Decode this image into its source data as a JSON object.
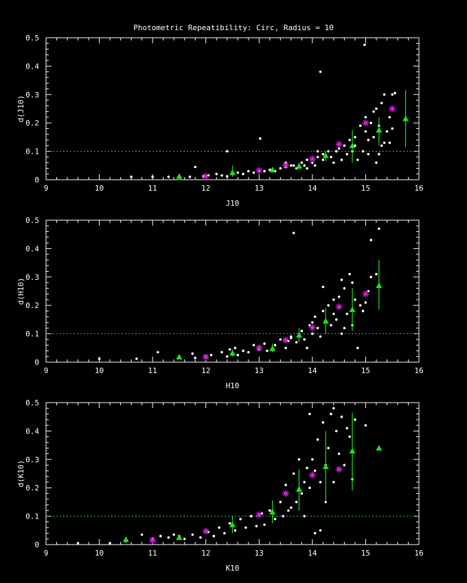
{
  "page_title": "Photometric Repeatibility: Circ, Radius = 10",
  "colors": {
    "background": "#000000",
    "axes": "#ffffff",
    "points": "#ffffff",
    "median": "#19e619",
    "mean": "#e020e0",
    "reference": "#3fb0c8"
  },
  "chart_data": [
    {
      "type": "scatter",
      "xlabel": "J10",
      "ylabel": "d(J10)",
      "xlim": [
        9,
        16
      ],
      "ylim": [
        0,
        0.5
      ],
      "xticks": [
        "9",
        "10",
        "11",
        "12",
        "13",
        "14",
        "15",
        "16"
      ],
      "yticks": [
        "0",
        "0.1",
        "0.2",
        "0.3",
        "0.4",
        "0.5"
      ],
      "reference_y": 0.1,
      "points": [
        [
          10.6,
          0.01
        ],
        [
          11.0,
          0.01
        ],
        [
          11.3,
          0.01
        ],
        [
          11.5,
          0.01
        ],
        [
          11.7,
          0.01
        ],
        [
          11.8,
          0.045
        ],
        [
          11.95,
          0.012
        ],
        [
          12.05,
          0.015
        ],
        [
          12.2,
          0.02
        ],
        [
          12.3,
          0.015
        ],
        [
          12.4,
          0.012
        ],
        [
          12.4,
          0.1
        ],
        [
          12.5,
          0.02
        ],
        [
          12.6,
          0.025
        ],
        [
          12.7,
          0.02
        ],
        [
          12.8,
          0.03
        ],
        [
          12.9,
          0.025
        ],
        [
          13.0,
          0.03
        ],
        [
          13.02,
          0.145
        ],
        [
          13.1,
          0.03
        ],
        [
          13.2,
          0.035
        ],
        [
          13.3,
          0.03
        ],
        [
          13.4,
          0.04
        ],
        [
          13.5,
          0.045
        ],
        [
          13.5,
          0.06
        ],
        [
          13.6,
          0.05
        ],
        [
          13.65,
          0.05
        ],
        [
          13.7,
          0.04
        ],
        [
          13.8,
          0.06
        ],
        [
          13.85,
          0.05
        ],
        [
          13.9,
          0.07
        ],
        [
          13.9,
          0.04
        ],
        [
          14.0,
          0.06
        ],
        [
          14.05,
          0.05
        ],
        [
          14.1,
          0.08
        ],
        [
          14.1,
          0.1
        ],
        [
          14.15,
          0.38
        ],
        [
          14.2,
          0.07
        ],
        [
          14.2,
          0.09
        ],
        [
          14.3,
          0.1
        ],
        [
          14.35,
          0.08
        ],
        [
          14.4,
          0.06
        ],
        [
          14.45,
          0.1
        ],
        [
          14.5,
          0.11
        ],
        [
          14.55,
          0.07
        ],
        [
          14.6,
          0.12
        ],
        [
          14.65,
          0.09
        ],
        [
          14.7,
          0.14
        ],
        [
          14.75,
          0.1
        ],
        [
          14.8,
          0.15
        ],
        [
          14.85,
          0.07
        ],
        [
          14.9,
          0.19
        ],
        [
          14.95,
          0.1
        ],
        [
          14.98,
          0.475
        ],
        [
          15.0,
          0.17
        ],
        [
          15.0,
          0.22
        ],
        [
          15.05,
          0.09
        ],
        [
          15.1,
          0.2
        ],
        [
          15.15,
          0.15
        ],
        [
          15.2,
          0.06
        ],
        [
          15.2,
          0.25
        ],
        [
          15.25,
          0.19
        ],
        [
          15.3,
          0.12
        ],
        [
          15.3,
          0.27
        ],
        [
          15.35,
          0.3
        ],
        [
          15.4,
          0.17
        ],
        [
          15.45,
          0.22
        ],
        [
          15.5,
          0.3
        ],
        [
          15.5,
          0.18
        ],
        [
          15.55,
          0.305
        ],
        [
          15.35,
          0.13
        ],
        [
          15.45,
          0.13
        ],
        [
          15.25,
          0.09
        ],
        [
          15.15,
          0.24
        ],
        [
          14.8,
          0.12
        ],
        [
          15.05,
          0.14
        ]
      ],
      "median": [
        {
          "x": 11.5,
          "y": 0.012,
          "lo": 0.005,
          "hi": 0.02
        },
        {
          "x": 12.5,
          "y": 0.025,
          "lo": 0.01,
          "hi": 0.05
        },
        {
          "x": 13.25,
          "y": 0.035,
          "lo": 0.025,
          "hi": 0.045
        },
        {
          "x": 13.75,
          "y": 0.048,
          "lo": 0.035,
          "hi": 0.06
        },
        {
          "x": 14.25,
          "y": 0.085,
          "lo": 0.065,
          "hi": 0.1
        },
        {
          "x": 14.75,
          "y": 0.12,
          "lo": 0.06,
          "hi": 0.175
        },
        {
          "x": 15.25,
          "y": 0.175,
          "lo": 0.12,
          "hi": 0.22
        },
        {
          "x": 15.75,
          "y": 0.215,
          "lo": 0.115,
          "hi": 0.315
        }
      ],
      "mean": [
        [
          12.0,
          0.012
        ],
        [
          13.0,
          0.033
        ],
        [
          13.5,
          0.05
        ],
        [
          14.0,
          0.073
        ],
        [
          14.5,
          0.125
        ],
        [
          15.0,
          0.2
        ],
        [
          15.5,
          0.25
        ]
      ]
    },
    {
      "type": "scatter",
      "xlabel": "H10",
      "ylabel": "d(H10)",
      "xlim": [
        9,
        16
      ],
      "ylim": [
        0,
        0.5
      ],
      "xticks": [
        "9",
        "10",
        "11",
        "12",
        "13",
        "14",
        "15",
        "16"
      ],
      "yticks": [
        "0",
        "0.1",
        "0.2",
        "0.3",
        "0.4",
        "0.5"
      ],
      "reference_y": 0.1,
      "points": [
        [
          10.0,
          0.012
        ],
        [
          10.7,
          0.012
        ],
        [
          11.1,
          0.035
        ],
        [
          11.5,
          0.02
        ],
        [
          11.75,
          0.03
        ],
        [
          11.8,
          0.015
        ],
        [
          12.0,
          0.02
        ],
        [
          12.1,
          0.025
        ],
        [
          12.3,
          0.035
        ],
        [
          12.4,
          0.02
        ],
        [
          12.45,
          0.045
        ],
        [
          12.55,
          0.05
        ],
        [
          12.6,
          0.025
        ],
        [
          12.7,
          0.04
        ],
        [
          12.8,
          0.035
        ],
        [
          12.9,
          0.06
        ],
        [
          13.0,
          0.045
        ],
        [
          13.1,
          0.065
        ],
        [
          13.15,
          0.04
        ],
        [
          13.3,
          0.06
        ],
        [
          13.4,
          0.08
        ],
        [
          13.5,
          0.05
        ],
        [
          13.55,
          0.075
        ],
        [
          13.6,
          0.09
        ],
        [
          13.65,
          0.455
        ],
        [
          13.7,
          0.07
        ],
        [
          13.8,
          0.11
        ],
        [
          13.85,
          0.08
        ],
        [
          13.9,
          0.05
        ],
        [
          13.95,
          0.13
        ],
        [
          14.0,
          0.1
        ],
        [
          14.05,
          0.16
        ],
        [
          14.1,
          0.12
        ],
        [
          14.15,
          0.09
        ],
        [
          14.2,
          0.18
        ],
        [
          14.25,
          0.14
        ],
        [
          14.3,
          0.2
        ],
        [
          14.35,
          0.13
        ],
        [
          14.4,
          0.22
        ],
        [
          14.45,
          0.15
        ],
        [
          14.5,
          0.23
        ],
        [
          14.55,
          0.1
        ],
        [
          14.6,
          0.26
        ],
        [
          14.65,
          0.17
        ],
        [
          14.7,
          0.31
        ],
        [
          14.75,
          0.13
        ],
        [
          14.8,
          0.22
        ],
        [
          14.85,
          0.05
        ],
        [
          14.9,
          0.2
        ],
        [
          14.95,
          0.18
        ],
        [
          15.0,
          0.21
        ],
        [
          15.05,
          0.25
        ],
        [
          15.1,
          0.3
        ],
        [
          15.1,
          0.43
        ],
        [
          15.2,
          0.31
        ],
        [
          15.25,
          0.47
        ],
        [
          14.4,
          0.17
        ],
        [
          14.6,
          0.12
        ],
        [
          14.2,
          0.265
        ],
        [
          14.55,
          0.29
        ],
        [
          14.75,
          0.28
        ],
        [
          13.6,
          0.085
        ],
        [
          14.0,
          0.14
        ]
      ],
      "median": [
        {
          "x": 11.5,
          "y": 0.018,
          "lo": 0.01,
          "hi": 0.025
        },
        {
          "x": 12.5,
          "y": 0.032,
          "lo": 0.02,
          "hi": 0.045
        },
        {
          "x": 13.25,
          "y": 0.048,
          "lo": 0.035,
          "hi": 0.065
        },
        {
          "x": 13.75,
          "y": 0.095,
          "lo": 0.07,
          "hi": 0.12
        },
        {
          "x": 14.25,
          "y": 0.145,
          "lo": 0.1,
          "hi": 0.19
        },
        {
          "x": 14.75,
          "y": 0.185,
          "lo": 0.11,
          "hi": 0.26
        },
        {
          "x": 15.25,
          "y": 0.27,
          "lo": 0.185,
          "hi": 0.36
        }
      ],
      "mean": [
        [
          12.0,
          0.018
        ],
        [
          13.0,
          0.05
        ],
        [
          13.5,
          0.078
        ],
        [
          14.0,
          0.122
        ],
        [
          14.5,
          0.195
        ],
        [
          15.0,
          0.24
        ]
      ]
    },
    {
      "type": "scatter",
      "xlabel": "K10",
      "ylabel": "d(K10)",
      "xlim": [
        9,
        16
      ],
      "ylim": [
        0,
        0.5
      ],
      "xticks": [
        "9",
        "10",
        "11",
        "12",
        "13",
        "14",
        "15",
        "16"
      ],
      "yticks": [
        "0",
        "0.1",
        "0.2",
        "0.3",
        "0.4",
        "0.5"
      ],
      "reference_y": 0.1,
      "points": [
        [
          9.6,
          0.005
        ],
        [
          10.2,
          0.005
        ],
        [
          10.5,
          0.012
        ],
        [
          10.8,
          0.035
        ],
        [
          11.0,
          0.02
        ],
        [
          11.15,
          0.03
        ],
        [
          11.3,
          0.025
        ],
        [
          11.4,
          0.035
        ],
        [
          11.5,
          0.03
        ],
        [
          11.6,
          0.02
        ],
        [
          11.75,
          0.035
        ],
        [
          11.9,
          0.025
        ],
        [
          12.05,
          0.045
        ],
        [
          12.15,
          0.03
        ],
        [
          12.25,
          0.06
        ],
        [
          12.35,
          0.04
        ],
        [
          12.45,
          0.075
        ],
        [
          12.55,
          0.05
        ],
        [
          12.65,
          0.09
        ],
        [
          12.75,
          0.06
        ],
        [
          12.85,
          0.1
        ],
        [
          12.95,
          0.065
        ],
        [
          13.05,
          0.11
        ],
        [
          13.1,
          0.07
        ],
        [
          13.2,
          0.12
        ],
        [
          13.3,
          0.09
        ],
        [
          13.4,
          0.15
        ],
        [
          13.45,
          0.1
        ],
        [
          13.5,
          0.21
        ],
        [
          13.55,
          0.12
        ],
        [
          13.6,
          0.13
        ],
        [
          13.65,
          0.25
        ],
        [
          13.7,
          0.15
        ],
        [
          13.75,
          0.3
        ],
        [
          13.8,
          0.18
        ],
        [
          13.85,
          0.22
        ],
        [
          13.9,
          0.27
        ],
        [
          13.95,
          0.2
        ],
        [
          14.0,
          0.3
        ],
        [
          14.05,
          0.04
        ],
        [
          14.05,
          0.26
        ],
        [
          14.1,
          0.37
        ],
        [
          14.15,
          0.22
        ],
        [
          14.2,
          0.43
        ],
        [
          14.25,
          0.28
        ],
        [
          14.3,
          0.34
        ],
        [
          14.35,
          0.46
        ],
        [
          14.4,
          0.22
        ],
        [
          14.45,
          0.4
        ],
        [
          14.5,
          0.32
        ],
        [
          14.55,
          0.45
        ],
        [
          14.6,
          0.28
        ],
        [
          14.7,
          0.38
        ],
        [
          14.75,
          0.23
        ],
        [
          14.8,
          0.44
        ],
        [
          15.0,
          0.42
        ],
        [
          13.95,
          0.46
        ],
        [
          14.15,
          0.05
        ],
        [
          14.25,
          0.15
        ],
        [
          13.85,
          0.1
        ],
        [
          14.4,
          0.48
        ],
        [
          14.65,
          0.41
        ]
      ],
      "median": [
        {
          "x": 10.5,
          "y": 0.018,
          "lo": 0.01,
          "hi": 0.025
        },
        {
          "x": 11.5,
          "y": 0.025,
          "lo": 0.018,
          "hi": 0.032
        },
        {
          "x": 12.5,
          "y": 0.07,
          "lo": 0.04,
          "hi": 0.1
        },
        {
          "x": 13.25,
          "y": 0.115,
          "lo": 0.075,
          "hi": 0.155
        },
        {
          "x": 13.75,
          "y": 0.195,
          "lo": 0.12,
          "hi": 0.265
        },
        {
          "x": 14.25,
          "y": 0.275,
          "lo": 0.15,
          "hi": 0.4
        },
        {
          "x": 14.75,
          "y": 0.33,
          "lo": 0.19,
          "hi": 0.465
        },
        {
          "x": 15.25,
          "y": 0.34,
          "lo": 0.34,
          "hi": 0.34
        }
      ],
      "mean": [
        [
          11.0,
          0.015
        ],
        [
          12.0,
          0.047
        ],
        [
          13.0,
          0.105
        ],
        [
          13.5,
          0.18
        ],
        [
          14.0,
          0.245
        ],
        [
          14.5,
          0.265
        ]
      ]
    }
  ]
}
